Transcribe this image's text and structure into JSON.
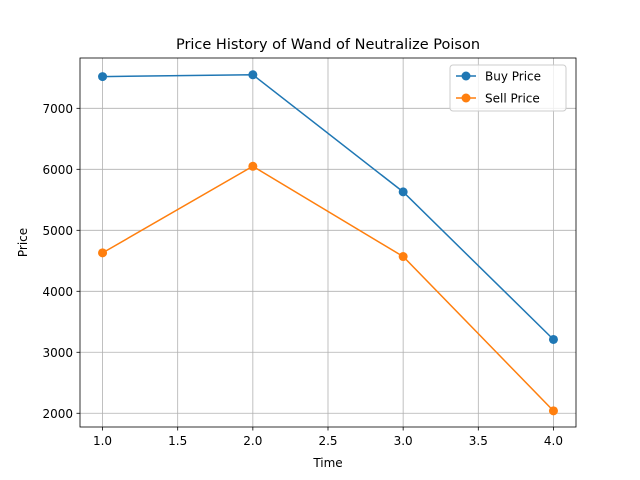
{
  "chart_data": {
    "type": "line",
    "title": "Price History of Wand of Neutralize Poison",
    "xlabel": "Time",
    "ylabel": "Price",
    "x": [
      1.0,
      2.0,
      3.0,
      4.0
    ],
    "series": [
      {
        "name": "Buy Price",
        "color": "#1f77b4",
        "values": [
          7520,
          7550,
          5630,
          3210
        ]
      },
      {
        "name": "Sell Price",
        "color": "#ff7f0e",
        "values": [
          4630,
          6050,
          4570,
          2040
        ]
      }
    ],
    "xlim": [
      0.85,
      4.15
    ],
    "ylim": [
      1775,
      7825
    ],
    "xticks": [
      1.0,
      1.5,
      2.0,
      2.5,
      3.0,
      3.5,
      4.0
    ],
    "xtick_labels": [
      "1.0",
      "1.5",
      "2.0",
      "2.5",
      "3.0",
      "3.5",
      "4.0"
    ],
    "yticks": [
      2000,
      3000,
      4000,
      5000,
      6000,
      7000
    ],
    "ytick_labels": [
      "2000",
      "3000",
      "4000",
      "5000",
      "6000",
      "7000"
    ],
    "grid": true,
    "legend_position": "top-right"
  }
}
